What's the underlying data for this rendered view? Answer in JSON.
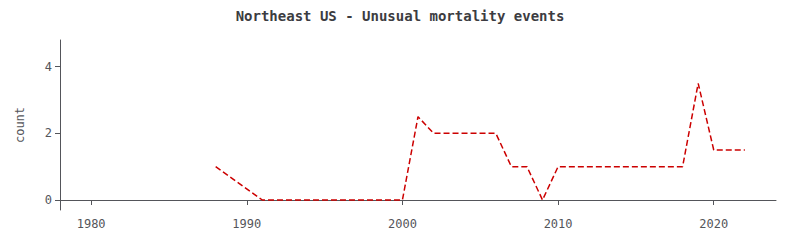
{
  "chart_data": {
    "type": "line",
    "title": "Northeast US - Unusual mortality events",
    "ylabel": "count",
    "x": [
      1988,
      1991,
      1999,
      2000,
      2001,
      2002,
      2003,
      2004,
      2005,
      2006,
      2007,
      2008,
      2009,
      2010,
      2017,
      2018,
      2019,
      2020,
      2022
    ],
    "values": [
      1,
      0,
      0,
      0,
      2.5,
      2,
      2,
      2,
      2,
      2,
      1,
      1,
      0,
      1,
      1,
      1,
      3.5,
      1.5,
      1.5
    ],
    "color": "#cc0000",
    "line_style": "dashed",
    "xlim": [
      1978,
      2024
    ],
    "xticks": [
      1980,
      1990,
      2000,
      2010,
      2020
    ],
    "ylim": [
      -0.3,
      4.8
    ],
    "yticks": [
      0,
      2,
      4
    ],
    "grid": false
  }
}
